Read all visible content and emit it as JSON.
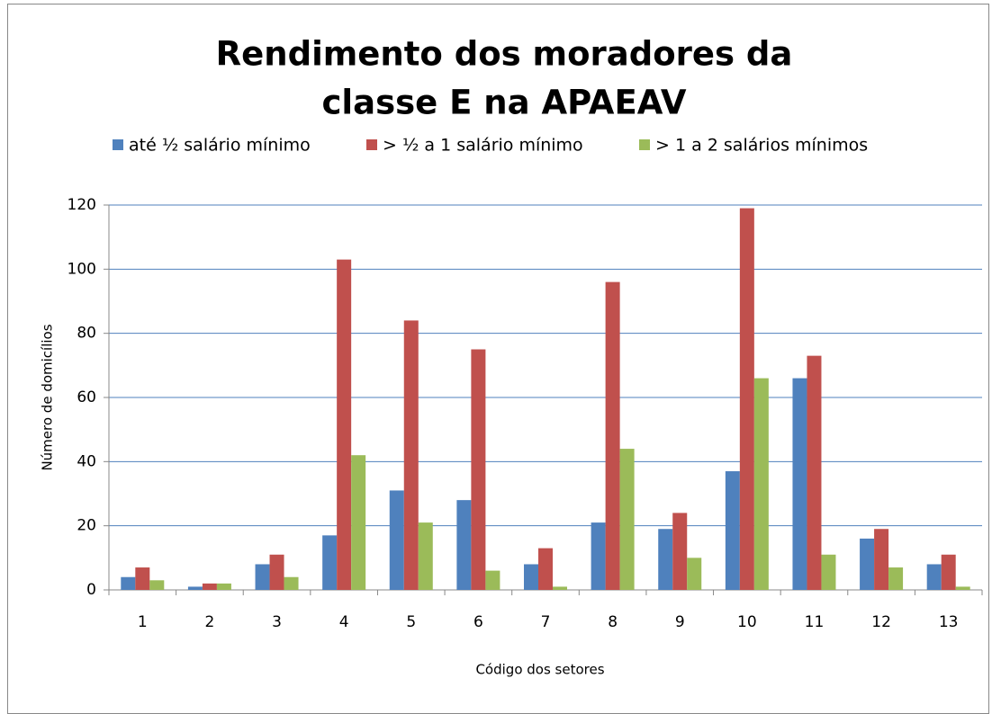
{
  "chart_data": {
    "type": "bar",
    "title": [
      "Rendimento dos moradores da",
      "classe E na APAEAV"
    ],
    "x_label": "Código dos setores",
    "y_label": "Número de domicílios",
    "categories": [
      "1",
      "2",
      "3",
      "4",
      "5",
      "6",
      "7",
      "8",
      "9",
      "10",
      "11",
      "12",
      "13"
    ],
    "series": [
      {
        "name": "até ½ salário mínimo",
        "color": "#4f81bd",
        "values": [
          4,
          1,
          8,
          17,
          31,
          28,
          8,
          21,
          19,
          37,
          66,
          16,
          8
        ]
      },
      {
        "name": "> ½ a 1 salário mínimo",
        "color": "#c0504d",
        "values": [
          7,
          2,
          11,
          103,
          84,
          75,
          13,
          96,
          24,
          119,
          73,
          19,
          11
        ]
      },
      {
        "name": "> 1 a 2 salários mínimos",
        "color": "#9bbb59",
        "values": [
          3,
          2,
          4,
          42,
          21,
          6,
          1,
          44,
          10,
          66,
          11,
          7,
          1
        ]
      }
    ],
    "ylim": [
      0,
      120
    ],
    "yticks": [
      0,
      20,
      40,
      60,
      80,
      100,
      120
    ],
    "grid": true,
    "legend": "top"
  }
}
